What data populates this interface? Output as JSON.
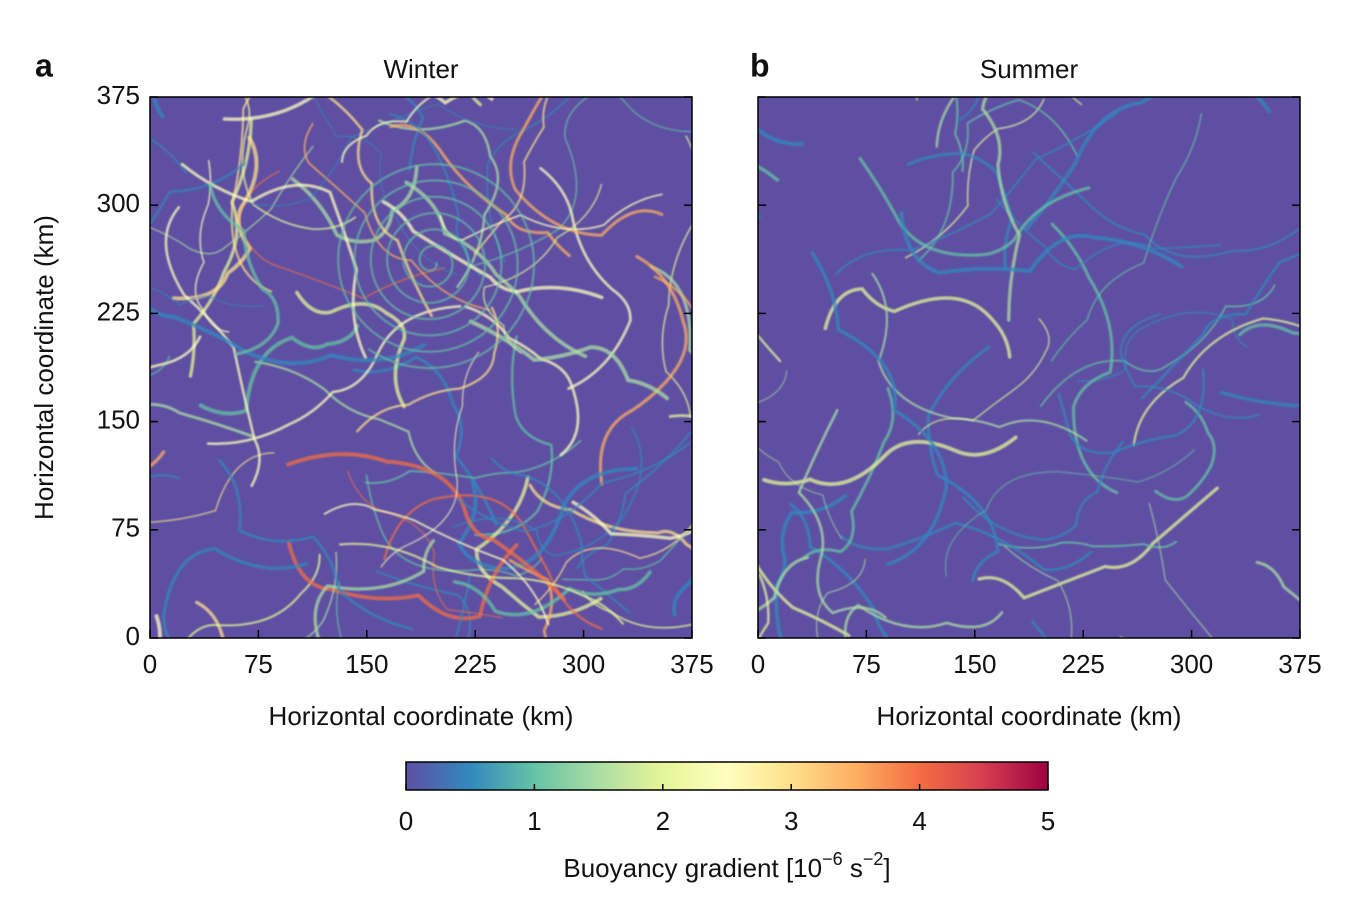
{
  "chart_data": [
    {
      "type": "heatmap",
      "panel_label": "a",
      "title": "Winter",
      "xlabel": "Horizontal coordinate (km)",
      "ylabel": "Horizontal coordinate (km)",
      "xlim": [
        0,
        375
      ],
      "ylim": [
        0,
        375
      ],
      "xticks": [
        0,
        75,
        150,
        225,
        300,
        375
      ],
      "yticks": [
        0,
        75,
        150,
        225,
        300,
        375
      ],
      "show_ytick_labels": true
    },
    {
      "type": "heatmap",
      "panel_label": "b",
      "title": "Summer",
      "xlabel": "Horizontal coordinate (km)",
      "xlim": [
        0,
        375
      ],
      "ylim": [
        0,
        375
      ],
      "xticks": [
        0,
        75,
        150,
        225,
        300,
        375
      ],
      "yticks": [
        0,
        75,
        150,
        225,
        300,
        375
      ],
      "show_ytick_labels": false
    }
  ],
  "colorbar": {
    "lim": [
      0,
      5
    ],
    "ticks": [
      0,
      1,
      2,
      3,
      4,
      5
    ],
    "colormap": [
      "#5e4fa2",
      "#3288bd",
      "#66c2a5",
      "#abdda4",
      "#e6f598",
      "#ffffbf",
      "#fee08b",
      "#fdae61",
      "#f46d43",
      "#d53e4f",
      "#9e0142"
    ],
    "label": [
      {
        "text": "Buoyancy gradient [10"
      },
      {
        "text": "−6",
        "sup": true
      },
      {
        "text": " s"
      },
      {
        "text": "−2",
        "sup": true
      },
      {
        "text": "]"
      }
    ]
  }
}
